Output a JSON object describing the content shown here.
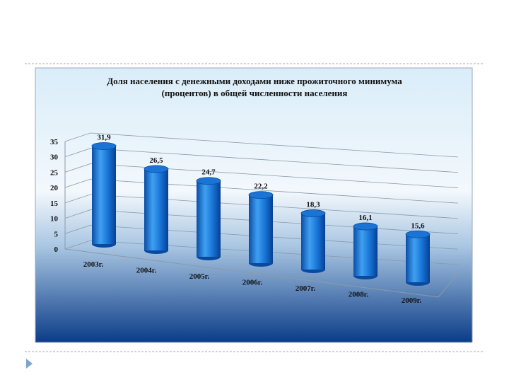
{
  "chart_data": {
    "type": "bar",
    "title": "Доля населения с денежными доходами ниже прожиточного минимума (процентов) в общей численности населения",
    "categories": [
      "2003г.",
      "2004г.",
      "2005г.",
      "2006г.",
      "2007г.",
      "2008г.",
      "2009г."
    ],
    "values": [
      31.9,
      26.5,
      24.7,
      22.2,
      18.3,
      16.1,
      15.6
    ],
    "value_labels": [
      "31,9",
      "26,5",
      "24,7",
      "22,2",
      "18,3",
      "16,1",
      "15,6"
    ],
    "color": "#1a74d6",
    "ylim": [
      0,
      35
    ],
    "yticks": [
      0,
      5,
      10,
      15,
      20,
      25,
      30,
      35
    ],
    "grid": true
  }
}
